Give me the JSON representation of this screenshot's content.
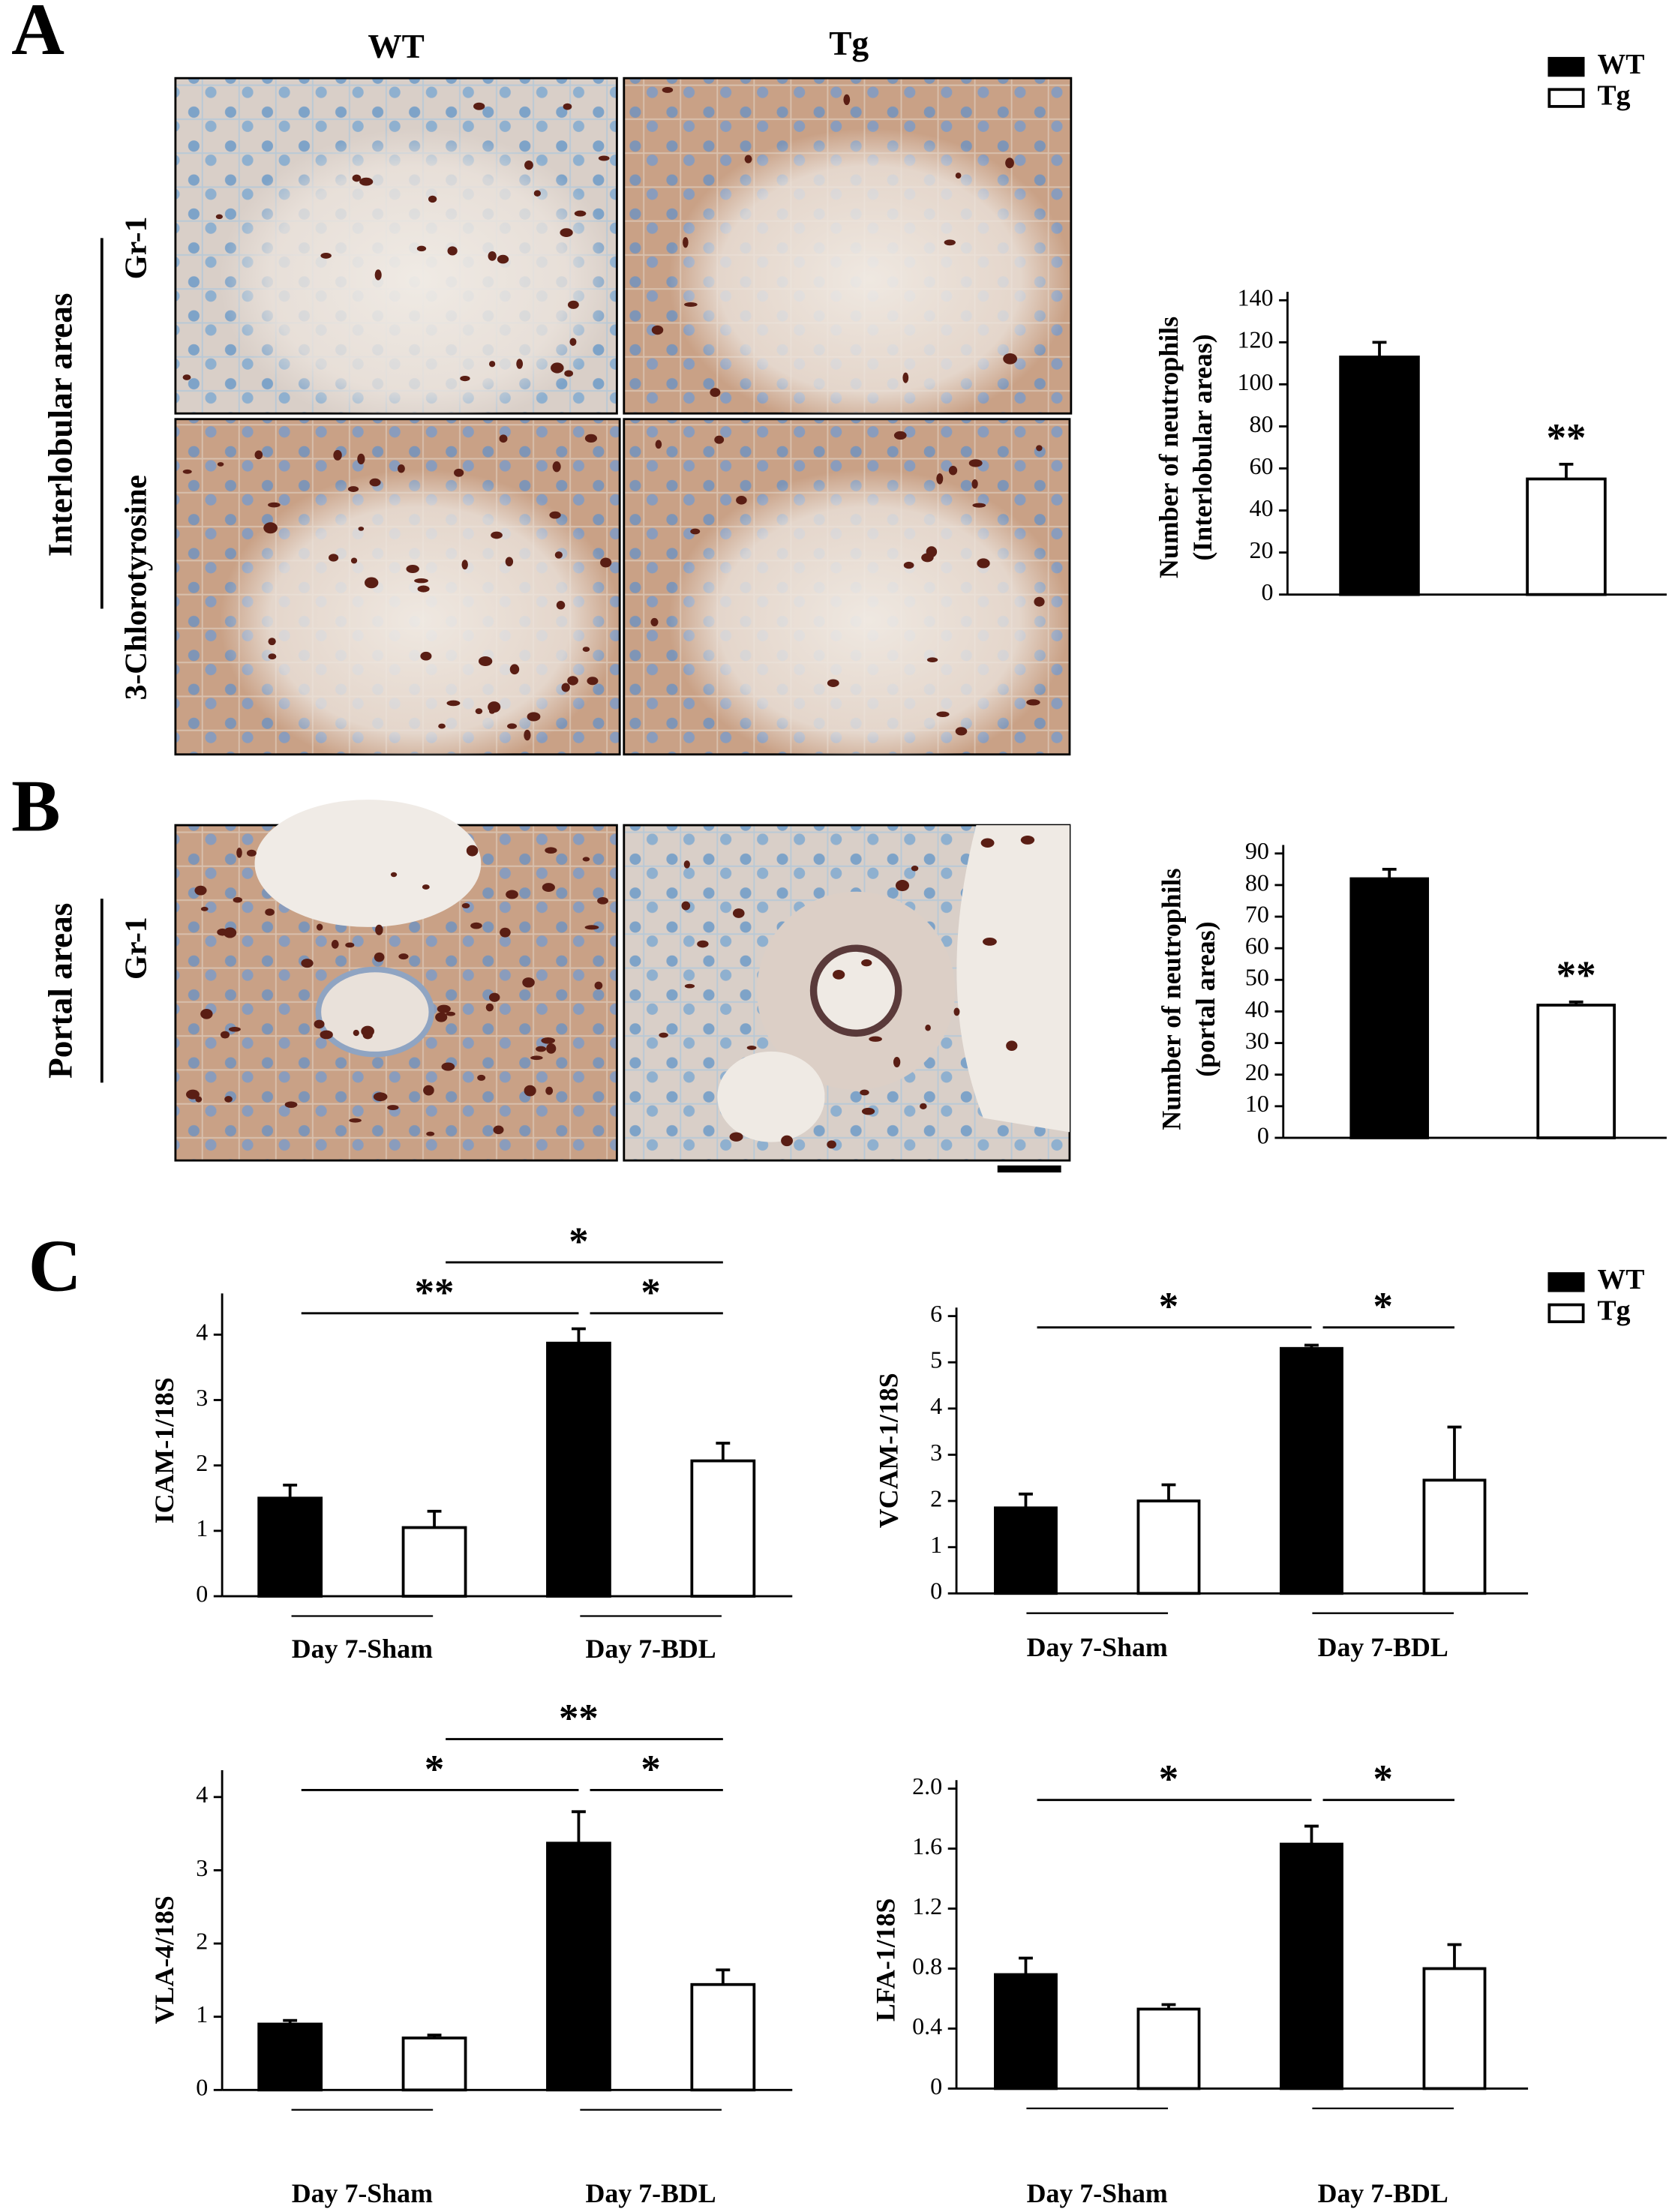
{
  "panels": {
    "A": {
      "letter": "A",
      "columns": [
        "WT",
        "Tg"
      ],
      "group": "Interlobular areas",
      "rows": [
        "Gr-1",
        "3-Chlorotyrosine"
      ]
    },
    "B": {
      "letter": "B",
      "group": "Portal areas",
      "rows": [
        "Gr-1"
      ]
    },
    "C": {
      "letter": "C"
    }
  },
  "legends": [
    {
      "entries": [
        {
          "name": "WT",
          "color": "#000000"
        },
        {
          "name": "Tg",
          "color": "#ffffff"
        }
      ]
    },
    {
      "entries": [
        {
          "name": "WT",
          "color": "#000000"
        },
        {
          "name": "Tg",
          "color": "#ffffff"
        }
      ]
    }
  ],
  "chart_data": [
    {
      "type": "bar",
      "ylabel": [
        "Number of neutrophils",
        "(Interlobular areas)"
      ],
      "series": [
        {
          "color": "#000000",
          "values": [
            113
          ],
          "errors": [
            7
          ]
        },
        {
          "color": "#ffffff",
          "values": [
            55
          ],
          "errors": [
            7
          ]
        }
      ],
      "ylim": [
        0,
        140
      ],
      "yticks": [
        0,
        20,
        40,
        60,
        80,
        100,
        120,
        140
      ],
      "annotations": [
        {
          "label": "**",
          "series": 1
        }
      ]
    },
    {
      "type": "bar",
      "ylabel": [
        "Number of neutrophils",
        "(portal areas)"
      ],
      "series": [
        {
          "color": "#000000",
          "values": [
            82
          ],
          "errors": [
            3
          ]
        },
        {
          "color": "#ffffff",
          "values": [
            42
          ],
          "errors": [
            1
          ]
        }
      ],
      "ylim": [
        0,
        90
      ],
      "yticks": [
        0,
        10,
        20,
        30,
        40,
        50,
        60,
        70,
        80,
        90
      ],
      "annotations": [
        {
          "label": "**",
          "series": 1
        }
      ]
    },
    {
      "type": "bar",
      "ylabel": "ICAM-1/18S",
      "categories": [
        "Day  7-Sham",
        "Day  7-BDL"
      ],
      "series": [
        {
          "color": "#000000",
          "values": [
            1.5,
            3.87
          ],
          "errors": [
            0.2,
            0.22
          ]
        },
        {
          "color": "#ffffff",
          "values": [
            1.05,
            2.07
          ],
          "errors": [
            0.25,
            0.27
          ]
        }
      ],
      "ylim": [
        0,
        4.5
      ],
      "yticks": [
        0,
        1,
        2,
        3,
        4
      ],
      "significance": [
        {
          "label": "**",
          "from": [
            0,
            0
          ],
          "to": [
            0,
            1
          ]
        },
        {
          "label": "*",
          "from": [
            0,
            1
          ],
          "to": [
            1,
            1
          ]
        },
        {
          "label": "*",
          "from": [
            1,
            0
          ],
          "to": [
            1,
            1
          ]
        }
      ]
    },
    {
      "type": "bar",
      "ylabel": "VCAM-1/18S",
      "categories": [
        "Day  7-Sham",
        "Day  7-BDL"
      ],
      "series": [
        {
          "color": "#000000",
          "values": [
            1.85,
            5.3
          ],
          "errors": [
            0.3,
            0.07
          ]
        },
        {
          "color": "#ffffff",
          "values": [
            2.0,
            2.45
          ],
          "errors": [
            0.35,
            1.15
          ]
        }
      ],
      "ylim": [
        0,
        6
      ],
      "yticks": [
        0,
        1,
        2,
        3,
        4,
        5,
        6
      ],
      "significance": [
        {
          "label": "*",
          "from": [
            0,
            0
          ],
          "to": [
            0,
            1
          ]
        },
        {
          "label": "*",
          "from": [
            0,
            1
          ],
          "to": [
            1,
            1
          ]
        }
      ]
    },
    {
      "type": "bar",
      "ylabel": "VLA-4/18S",
      "categories": [
        "Day  7-Sham",
        "Day  7-BDL"
      ],
      "series": [
        {
          "color": "#000000",
          "values": [
            0.9,
            3.37
          ],
          "errors": [
            0.05,
            0.43
          ]
        },
        {
          "color": "#ffffff",
          "values": [
            0.71,
            1.44
          ],
          "errors": [
            0.04,
            0.2
          ]
        }
      ],
      "ylim": [
        0,
        4.25
      ],
      "yticks": [
        0,
        1,
        2,
        3,
        4
      ],
      "significance": [
        {
          "label": "*",
          "from": [
            0,
            0
          ],
          "to": [
            0,
            1
          ]
        },
        {
          "label": "*",
          "from": [
            0,
            1
          ],
          "to": [
            1,
            1
          ]
        },
        {
          "label": "**",
          "from": [
            1,
            0
          ],
          "to": [
            1,
            1
          ]
        }
      ]
    },
    {
      "type": "bar",
      "ylabel": "LFA-1/18S",
      "categories": [
        "Day  7-Sham",
        "Day  7-BDL"
      ],
      "series": [
        {
          "color": "#000000",
          "values": [
            0.76,
            1.63
          ],
          "errors": [
            0.11,
            0.12
          ]
        },
        {
          "color": "#ffffff",
          "values": [
            0.53,
            0.8
          ],
          "errors": [
            0.03,
            0.16
          ]
        }
      ],
      "ylim": [
        0,
        2
      ],
      "yticks": [
        0,
        0.4,
        0.8,
        1.2,
        1.6,
        {
          "value": 2,
          "label": "2.0"
        }
      ],
      "significance": [
        {
          "label": "*",
          "from": [
            0,
            0
          ],
          "to": [
            0,
            1
          ]
        },
        {
          "label": "*",
          "from": [
            0,
            1
          ],
          "to": [
            1,
            1
          ]
        }
      ]
    }
  ]
}
